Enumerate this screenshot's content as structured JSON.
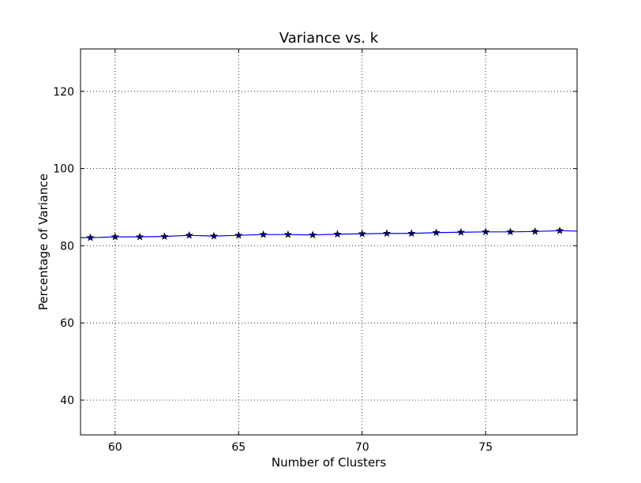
{
  "chart_data": {
    "type": "line",
    "title": "Variance vs. k",
    "xlabel": "Number of Clusters",
    "ylabel": "Percentage of Variance",
    "xlim": [
      58.6,
      78.7
    ],
    "ylim": [
      31,
      131
    ],
    "xticks": [
      60,
      65,
      70,
      75
    ],
    "yticks": [
      40,
      60,
      80,
      100,
      120
    ],
    "grid": true,
    "legend": "none",
    "colors": {
      "line": "#0000ff",
      "marker": "#000080"
    },
    "series": [
      {
        "x": [
          58.6,
          59,
          60,
          61,
          62,
          63,
          64,
          65,
          66,
          67,
          68,
          69,
          70,
          71,
          72,
          73,
          74,
          75,
          76,
          77,
          78,
          78.7
        ],
        "y": [
          82.1,
          82.1,
          82.3,
          82.3,
          82.4,
          82.7,
          82.5,
          82.7,
          82.9,
          82.9,
          82.8,
          83.0,
          83.1,
          83.2,
          83.2,
          83.4,
          83.5,
          83.6,
          83.6,
          83.7,
          83.9,
          83.8
        ],
        "marker_start": 1,
        "marker_end": 20,
        "marker": "star"
      }
    ]
  }
}
